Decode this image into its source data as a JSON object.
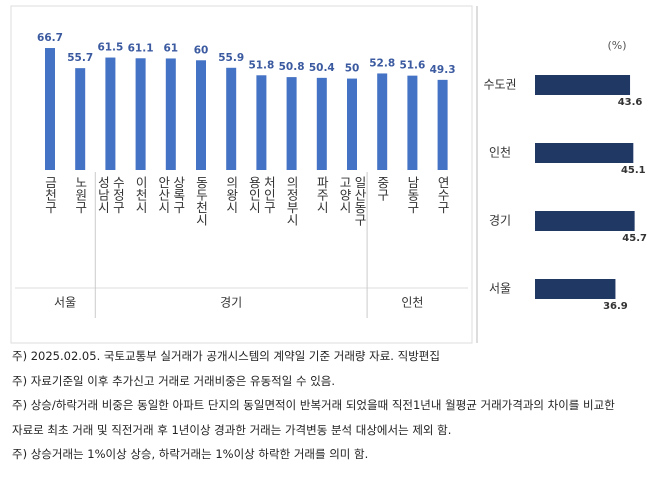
{
  "chart_data": [
    {
      "type": "bar",
      "color": "#4472c4",
      "ylim": [
        0,
        70
      ],
      "groups": [
        {
          "label": "서울",
          "categories": [
            "금천구",
            "노원구"
          ],
          "values": [
            66.7,
            55.7
          ]
        },
        {
          "label": "경기",
          "categories": [
            "성남시 수정구",
            "이천시",
            "안산시 상록구",
            "동두천시",
            "의왕시",
            "용인시 처인구",
            "의정부시",
            "파주시",
            "고양시 일산동구"
          ],
          "values": [
            61.5,
            61.1,
            61.0,
            60.0,
            55.9,
            51.8,
            50.8,
            50.4,
            50.0
          ]
        },
        {
          "label": "인천",
          "categories": [
            "중구",
            "남동구",
            "연수구"
          ],
          "values": [
            52.8,
            51.6,
            49.3
          ]
        }
      ]
    },
    {
      "type": "hbar",
      "unit": "(%)",
      "color": "#1f3864",
      "xlim": [
        0,
        50
      ],
      "categories": [
        "수도권",
        "인천",
        "경기",
        "서울"
      ],
      "values": [
        43.6,
        45.1,
        45.7,
        36.9
      ]
    }
  ],
  "notes": [
    "주) 2025.02.05. 국토교통부 실거래가 공개시스템의 계약일 기준 거래량  자료. 직방편집",
    "주) 자료기준일 이후 추가신고 거래로 거래비중은 유동적일 수 있음.",
    "주) 상승/하락거래 비중은 동일한 아파트 단지의 동일면적이 반복거래 되었을때 직전1년내 월평균 거래가격과의 차이를 비교한 자료로 최초 거래 및 직전거래 후 1년이상 경과한 거래는 가격변동 분석 대상에서는 제외 함.",
    "주) 상승거래는 1%이상 상승, 하락거래는 1%이상 하락한 거래를 의미 함."
  ]
}
